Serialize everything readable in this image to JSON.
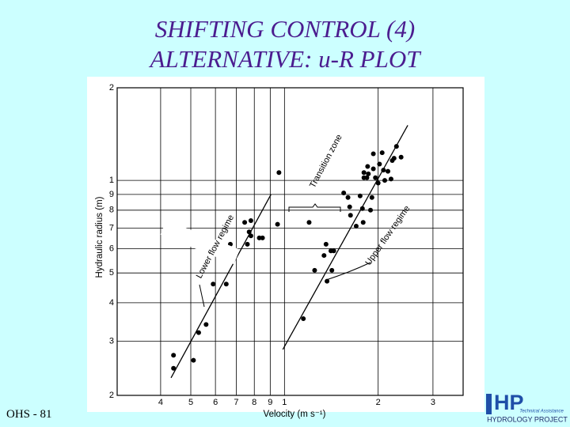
{
  "chart_data": {
    "type": "scatter",
    "title": [
      "SHIFTING CONTROL (4)",
      "ALTERNATIVE: u-R PLOT"
    ],
    "xlabel": "Velocity (m s⁻¹)",
    "ylabel": "Hydraulic radius (m)",
    "log_x": true,
    "log_y": true,
    "grid": true,
    "xlim": [
      0.29,
      3.75
    ],
    "ylim": [
      0.2,
      2
    ],
    "xticks": [
      {
        "value": 0.4,
        "label": "4"
      },
      {
        "value": 0.5,
        "label": "5"
      },
      {
        "value": 0.6,
        "label": "6"
      },
      {
        "value": 0.7,
        "label": "7"
      },
      {
        "value": 0.8,
        "label": "8"
      },
      {
        "value": 0.9,
        "label": "9"
      },
      1,
      2,
      3
    ],
    "yticks": [
      {
        "value": 0.2,
        "label": "2"
      },
      {
        "value": 0.3,
        "label": "3"
      },
      {
        "value": 0.4,
        "label": "4"
      },
      {
        "value": 0.5,
        "label": "5"
      },
      {
        "value": 0.6,
        "label": "6"
      },
      {
        "value": 0.7,
        "label": "7"
      },
      {
        "value": 0.8,
        "label": "8"
      },
      {
        "value": 0.9,
        "label": "9"
      },
      1,
      2
    ],
    "color": "#000000",
    "points": {
      "x": [
        0.44,
        0.44,
        0.51,
        0.53,
        0.56,
        0.59,
        0.65,
        0.67,
        0.745,
        0.76,
        0.78,
        0.77,
        0.78,
        0.83,
        0.85,
        0.95,
        0.96,
        1.2,
        1.25,
        1.34,
        1.37,
        1.42,
        1.41,
        1.44,
        1.36,
        1.15,
        1.55,
        1.6,
        1.62,
        1.63,
        1.7,
        1.75,
        1.78,
        1.79,
        1.84,
        1.89,
        1.86,
        1.91,
        1.93,
        1.93,
        1.96,
        2.0,
        2.02,
        2.06,
        2.08,
        2.1,
        2.15,
        2.2,
        2.22,
        2.25,
        2.29,
        2.37,
        1.8,
        1.8,
        1.85
      ],
      "y": [
        0.27,
        0.245,
        0.26,
        0.32,
        0.34,
        0.46,
        0.46,
        0.62,
        0.73,
        0.62,
        0.74,
        0.68,
        0.66,
        0.65,
        0.65,
        0.72,
        1.06,
        0.73,
        0.51,
        0.57,
        0.47,
        0.51,
        0.59,
        0.59,
        0.62,
        0.355,
        0.91,
        0.88,
        0.82,
        0.77,
        0.71,
        0.89,
        0.81,
        0.73,
        1.02,
        0.8,
        1.05,
        0.88,
        1.09,
        1.22,
        1.02,
        0.98,
        1.13,
        1.23,
        1.08,
        1.0,
        1.07,
        1.01,
        1.16,
        1.18,
        1.29,
        1.19,
        1.02,
        1.06,
        1.11
      ]
    },
    "fit_lines": [
      {
        "x": [
          0.432,
          0.905
        ],
        "y": [
          0.228,
          0.9
        ]
      },
      {
        "x": [
          0.988,
          2.49
        ],
        "y": [
          0.282,
          1.51
        ]
      }
    ],
    "annotations": [
      "Lower flow regime",
      "Transition zone",
      "Upper flow regime"
    ]
  },
  "footer": "OHS - 81",
  "logo": {
    "mark": "HP",
    "tagline": "Technical Assistance",
    "name": "HYDROLOGY PROJECT"
  }
}
